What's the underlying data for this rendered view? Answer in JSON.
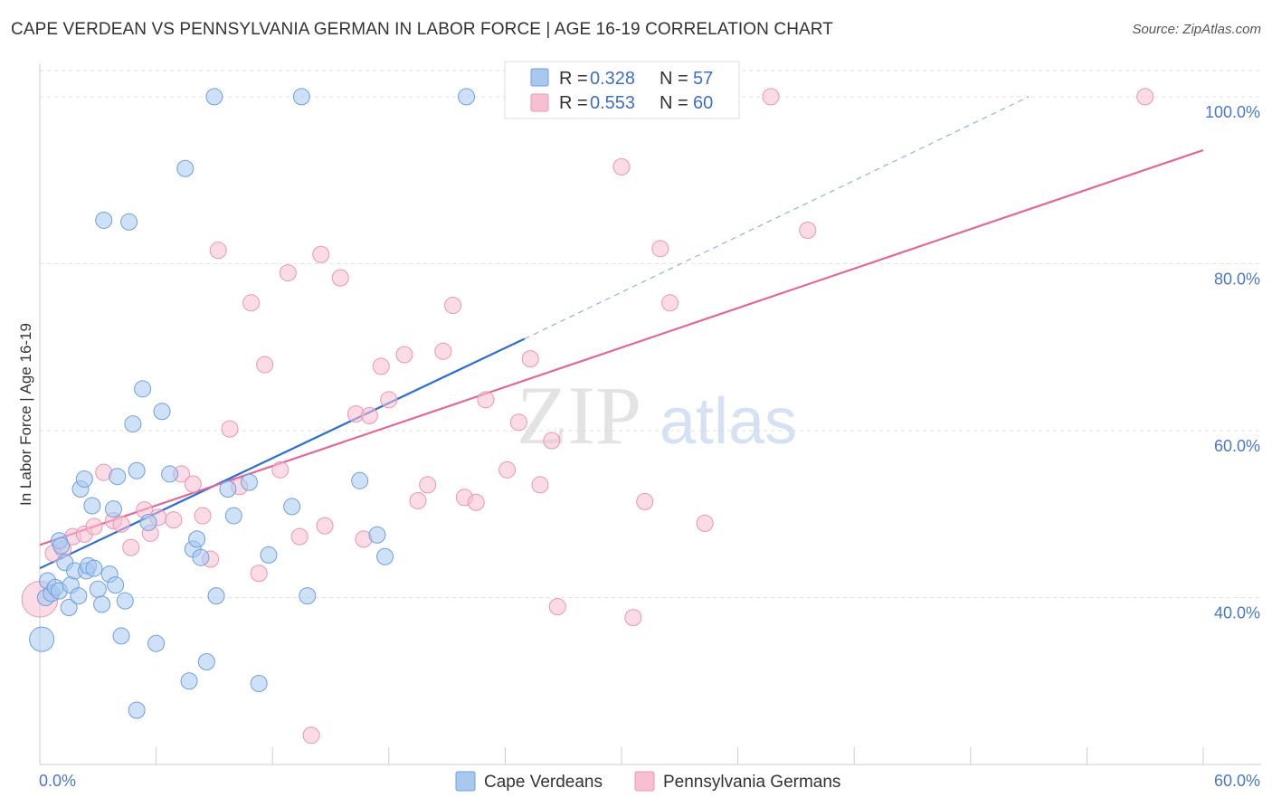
{
  "header": {
    "title": "CAPE VERDEAN VS PENNSYLVANIA GERMAN IN LABOR FORCE | AGE 16-19 CORRELATION CHART",
    "source": "Source: ZipAtlas.com"
  },
  "watermark": {
    "zip": "ZIP",
    "atlas": "atlas"
  },
  "chart_data": {
    "type": "scatter",
    "title": "CAPE VERDEAN VS PENNSYLVANIA GERMAN IN LABOR FORCE | AGE 16-19 CORRELATION CHART",
    "ylabel": "In Labor Force | Age 16-19",
    "xlabel": "",
    "xlim": [
      0,
      60
    ],
    "ylim": [
      20,
      104
    ],
    "x_tick_labels": [
      "0.0%",
      "60.0%"
    ],
    "y_ticks": [
      40,
      60,
      80,
      100
    ],
    "y_tick_labels": [
      "40.0%",
      "60.0%",
      "80.0%",
      "100.0%"
    ],
    "grid": true,
    "legend_top": [
      {
        "r_label": "R =",
        "r_value": "0.328",
        "n_label": "N =",
        "n_value": "57"
      },
      {
        "r_label": "R =",
        "r_value": "0.553",
        "n_label": "N =",
        "n_value": "60"
      }
    ],
    "colors": {
      "cape_fill": "#a8c8f0",
      "cape_stroke": "#6f9fdc",
      "cape_line": "#2e6fcf",
      "penn_fill": "#f7bfd2",
      "penn_stroke": "#ec94b4",
      "penn_line": "#e0699a"
    },
    "series": [
      {
        "name": "Cape Verdeans",
        "trend": {
          "x": [
            0,
            25
          ],
          "y": [
            43.5,
            71.0
          ],
          "dash_to": [
            51,
            100
          ]
        },
        "points": [
          {
            "x": 0.1,
            "y": 35.0,
            "s": 1.5
          },
          {
            "x": 0.3,
            "y": 40.0
          },
          {
            "x": 0.4,
            "y": 42.0
          },
          {
            "x": 0.6,
            "y": 40.5
          },
          {
            "x": 0.8,
            "y": 41.2
          },
          {
            "x": 1.0,
            "y": 40.8
          },
          {
            "x": 1.0,
            "y": 46.8
          },
          {
            "x": 1.1,
            "y": 46.2
          },
          {
            "x": 1.3,
            "y": 44.2
          },
          {
            "x": 1.5,
            "y": 38.8
          },
          {
            "x": 1.6,
            "y": 41.5
          },
          {
            "x": 1.8,
            "y": 43.2
          },
          {
            "x": 2.0,
            "y": 40.2
          },
          {
            "x": 2.1,
            "y": 53.0
          },
          {
            "x": 2.3,
            "y": 54.2
          },
          {
            "x": 2.4,
            "y": 43.2
          },
          {
            "x": 2.5,
            "y": 43.8
          },
          {
            "x": 2.7,
            "y": 51.0
          },
          {
            "x": 2.8,
            "y": 43.5
          },
          {
            "x": 3.0,
            "y": 41.0
          },
          {
            "x": 3.2,
            "y": 39.2
          },
          {
            "x": 3.3,
            "y": 85.2
          },
          {
            "x": 3.6,
            "y": 42.8
          },
          {
            "x": 3.8,
            "y": 50.6
          },
          {
            "x": 3.9,
            "y": 41.5
          },
          {
            "x": 4.0,
            "y": 54.5
          },
          {
            "x": 4.2,
            "y": 35.4
          },
          {
            "x": 4.4,
            "y": 39.6
          },
          {
            "x": 4.6,
            "y": 85.0
          },
          {
            "x": 4.8,
            "y": 60.8
          },
          {
            "x": 5.0,
            "y": 55.2
          },
          {
            "x": 5.0,
            "y": 26.5
          },
          {
            "x": 5.3,
            "y": 65.0
          },
          {
            "x": 5.6,
            "y": 49.0
          },
          {
            "x": 6.0,
            "y": 34.5
          },
          {
            "x": 6.3,
            "y": 62.3
          },
          {
            "x": 6.7,
            "y": 54.8
          },
          {
            "x": 7.5,
            "y": 91.4
          },
          {
            "x": 7.7,
            "y": 30.0
          },
          {
            "x": 7.9,
            "y": 45.8
          },
          {
            "x": 8.1,
            "y": 47.0
          },
          {
            "x": 8.3,
            "y": 44.8
          },
          {
            "x": 8.6,
            "y": 32.3
          },
          {
            "x": 9.0,
            "y": 100.0
          },
          {
            "x": 9.1,
            "y": 40.2
          },
          {
            "x": 9.7,
            "y": 53.0
          },
          {
            "x": 10.0,
            "y": 49.8
          },
          {
            "x": 10.8,
            "y": 53.8
          },
          {
            "x": 11.3,
            "y": 29.7
          },
          {
            "x": 11.8,
            "y": 45.1
          },
          {
            "x": 13.0,
            "y": 50.9
          },
          {
            "x": 13.5,
            "y": 100.0
          },
          {
            "x": 13.8,
            "y": 40.2
          },
          {
            "x": 16.5,
            "y": 54.0
          },
          {
            "x": 17.4,
            "y": 47.5
          },
          {
            "x": 17.8,
            "y": 44.9
          },
          {
            "x": 22.0,
            "y": 100.0
          }
        ]
      },
      {
        "name": "Pennsylvania Germans",
        "trend": {
          "x": [
            0,
            60
          ],
          "y": [
            46.3,
            93.6
          ]
        },
        "points": [
          {
            "x": 0.0,
            "y": 39.8,
            "s": 2.2
          },
          {
            "x": 0.7,
            "y": 45.3
          },
          {
            "x": 1.2,
            "y": 45.8
          },
          {
            "x": 1.7,
            "y": 47.3
          },
          {
            "x": 2.3,
            "y": 47.6
          },
          {
            "x": 2.8,
            "y": 48.5
          },
          {
            "x": 3.3,
            "y": 55.0
          },
          {
            "x": 3.8,
            "y": 49.2
          },
          {
            "x": 4.2,
            "y": 48.8
          },
          {
            "x": 4.7,
            "y": 46.0
          },
          {
            "x": 5.4,
            "y": 50.5
          },
          {
            "x": 5.7,
            "y": 47.7
          },
          {
            "x": 6.1,
            "y": 49.6
          },
          {
            "x": 6.9,
            "y": 49.3
          },
          {
            "x": 7.3,
            "y": 54.8
          },
          {
            "x": 7.9,
            "y": 53.6
          },
          {
            "x": 8.4,
            "y": 49.8
          },
          {
            "x": 8.8,
            "y": 44.6
          },
          {
            "x": 9.2,
            "y": 81.6
          },
          {
            "x": 9.8,
            "y": 60.2
          },
          {
            "x": 10.3,
            "y": 53.3
          },
          {
            "x": 10.9,
            "y": 75.3
          },
          {
            "x": 11.3,
            "y": 42.9
          },
          {
            "x": 11.6,
            "y": 67.9
          },
          {
            "x": 12.4,
            "y": 55.3
          },
          {
            "x": 12.8,
            "y": 78.9
          },
          {
            "x": 13.4,
            "y": 47.3
          },
          {
            "x": 14.5,
            "y": 81.1
          },
          {
            "x": 14.7,
            "y": 48.6
          },
          {
            "x": 14.0,
            "y": 23.5
          },
          {
            "x": 15.5,
            "y": 78.3
          },
          {
            "x": 16.3,
            "y": 62.0
          },
          {
            "x": 16.7,
            "y": 47.0
          },
          {
            "x": 17.0,
            "y": 61.8
          },
          {
            "x": 17.6,
            "y": 67.7
          },
          {
            "x": 18.0,
            "y": 63.7
          },
          {
            "x": 18.8,
            "y": 69.1
          },
          {
            "x": 19.5,
            "y": 51.6
          },
          {
            "x": 20.0,
            "y": 53.5
          },
          {
            "x": 20.8,
            "y": 69.5
          },
          {
            "x": 21.3,
            "y": 75.0
          },
          {
            "x": 21.9,
            "y": 52.0
          },
          {
            "x": 22.5,
            "y": 51.4
          },
          {
            "x": 23.0,
            "y": 63.7
          },
          {
            "x": 24.1,
            "y": 55.3
          },
          {
            "x": 24.7,
            "y": 61.0
          },
          {
            "x": 25.3,
            "y": 68.6
          },
          {
            "x": 25.8,
            "y": 53.5
          },
          {
            "x": 26.4,
            "y": 58.8
          },
          {
            "x": 26.7,
            "y": 38.9
          },
          {
            "x": 28.0,
            "y": 100.0
          },
          {
            "x": 30.0,
            "y": 91.6
          },
          {
            "x": 30.6,
            "y": 37.6
          },
          {
            "x": 31.2,
            "y": 51.5
          },
          {
            "x": 32.0,
            "y": 81.8
          },
          {
            "x": 32.5,
            "y": 75.3
          },
          {
            "x": 34.3,
            "y": 48.9
          },
          {
            "x": 37.7,
            "y": 100.0
          },
          {
            "x": 39.6,
            "y": 84.0
          },
          {
            "x": 57.0,
            "y": 100.0
          }
        ]
      }
    ]
  }
}
